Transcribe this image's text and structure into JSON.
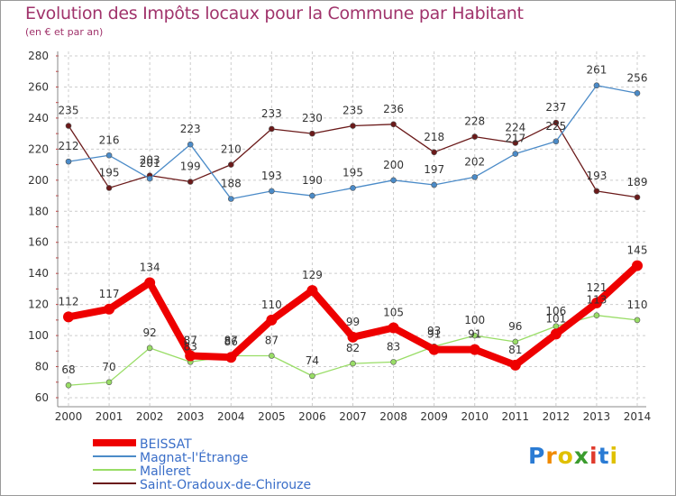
{
  "chart_data": {
    "type": "line",
    "title": "Evolution des Impôts locaux pour la Commune par Habitant",
    "subtitle": "(en € et par an)",
    "x": [
      "2000",
      "2001",
      "2002",
      "2003",
      "2004",
      "2005",
      "2006",
      "2007",
      "2008",
      "2009",
      "2010",
      "2011",
      "2012",
      "2013",
      "2014"
    ],
    "ylim": [
      60,
      280
    ],
    "yticks": [
      60,
      80,
      100,
      120,
      140,
      160,
      180,
      200,
      220,
      240,
      260,
      280
    ],
    "grid": true,
    "legend_position": "bottom-left",
    "series": [
      {
        "name": "BEISSAT",
        "color": "#ee0000",
        "values": [
          112,
          117,
          134,
          87,
          86,
          110,
          129,
          99,
          105,
          91,
          91,
          81,
          101,
          121,
          145
        ]
      },
      {
        "name": "Magnat-l'Étrange",
        "color": "#4b8bc8",
        "values": [
          212,
          216,
          201,
          223,
          188,
          193,
          190,
          195,
          200,
          197,
          202,
          217,
          225,
          261,
          256
        ]
      },
      {
        "name": "Malleret",
        "color": "#99dd66",
        "values": [
          68,
          70,
          92,
          83,
          87,
          87,
          74,
          82,
          83,
          93,
          100,
          96,
          106,
          113,
          110
        ]
      },
      {
        "name": "Saint-Oradoux-de-Chirouze",
        "color": "#6b1a1a",
        "values": [
          235,
          195,
          203,
          199,
          210,
          233,
          230,
          235,
          236,
          218,
          228,
          224,
          237,
          193,
          189
        ]
      }
    ]
  },
  "brand": {
    "letters": [
      "P",
      "r",
      "o",
      "x",
      "i",
      "t",
      "i"
    ],
    "colors": [
      "#2a7bd4",
      "#f08a00",
      "#e0c000",
      "#3b9c2e",
      "#e03a2c",
      "#2a7bd4",
      "#e0c000"
    ]
  }
}
